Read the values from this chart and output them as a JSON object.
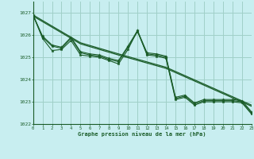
{
  "title": "Graphe pression niveau de la mer (hPa)",
  "background_color": "#c8eef0",
  "grid_color": "#a0d0c8",
  "line_color": "#1a5c28",
  "x_min": 0,
  "x_max": 23,
  "y_min": 1022,
  "y_max": 1027.5,
  "yticks": [
    1022,
    1023,
    1024,
    1025,
    1026,
    1027
  ],
  "xticks": [
    0,
    1,
    2,
    3,
    4,
    5,
    6,
    7,
    8,
    9,
    10,
    11,
    12,
    13,
    14,
    15,
    16,
    17,
    18,
    19,
    20,
    21,
    22,
    23
  ],
  "series1": [
    1026.9,
    1025.85,
    1025.3,
    1025.35,
    1025.75,
    1025.1,
    1025.05,
    1025.0,
    1024.85,
    1024.7,
    1025.35,
    1026.2,
    1025.1,
    1025.05,
    1024.95,
    1023.1,
    1023.2,
    1022.85,
    1023.0,
    1023.0,
    1023.0,
    1023.0,
    1022.95,
    1022.45
  ],
  "series2": [
    1026.9,
    1025.9,
    1025.5,
    1025.4,
    1025.85,
    1025.2,
    1025.1,
    1025.05,
    1024.9,
    1024.8,
    1025.45,
    1026.15,
    1025.15,
    1025.1,
    1025.0,
    1023.15,
    1023.25,
    1022.9,
    1023.05,
    1023.05,
    1023.05,
    1023.05,
    1023.0,
    1022.5
  ],
  "series3": [
    1026.9,
    1025.95,
    1025.55,
    1025.45,
    1025.9,
    1025.25,
    1025.15,
    1025.1,
    1024.95,
    1024.85,
    1025.5,
    1026.2,
    1025.2,
    1025.15,
    1025.05,
    1023.2,
    1023.3,
    1022.95,
    1023.1,
    1023.1,
    1023.1,
    1023.1,
    1023.05,
    1022.55
  ],
  "trend1_x": [
    0,
    5,
    9,
    14,
    23
  ],
  "trend1_y": [
    1026.9,
    1025.65,
    1025.15,
    1024.55,
    1022.85
  ],
  "trend2_x": [
    0,
    5,
    9,
    14,
    23
  ],
  "trend2_y": [
    1026.85,
    1025.6,
    1025.1,
    1024.5,
    1022.8
  ]
}
